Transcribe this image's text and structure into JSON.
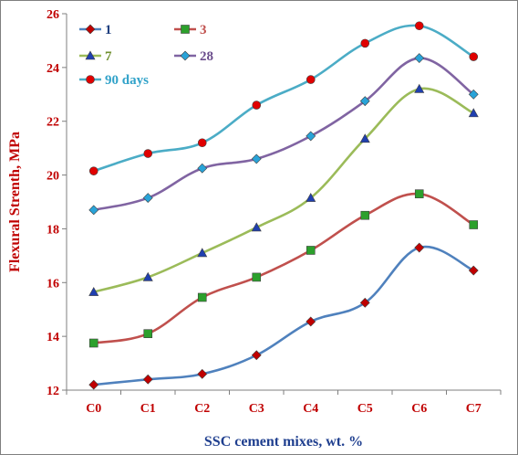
{
  "chart_data": {
    "type": "line",
    "title": "",
    "xlabel": "SSC cement mixes, wt. %",
    "ylabel": "Flexural Strenth, MPa",
    "categories": [
      "C0",
      "C1",
      "C2",
      "C3",
      "C4",
      "C5",
      "C6",
      "C7"
    ],
    "ylim": [
      12,
      26
    ],
    "yticks": [
      12,
      14,
      16,
      18,
      20,
      22,
      24,
      26
    ],
    "grid": false,
    "legend_placement": "top-left",
    "series": [
      {
        "name": "1",
        "marker": "diamond",
        "line_color": "#4f81bd",
        "marker_color": "#c00000",
        "text_color": "#1f3f7f",
        "values": [
          12.2,
          12.4,
          12.6,
          13.3,
          14.55,
          15.25,
          17.3,
          16.45
        ]
      },
      {
        "name": "3",
        "marker": "square",
        "line_color": "#c0504d",
        "marker_color": "#2ca02c",
        "text_color": "#c0504d",
        "values": [
          13.75,
          14.1,
          15.45,
          16.2,
          17.2,
          18.5,
          19.3,
          18.15
        ]
      },
      {
        "name": "7",
        "marker": "triangle",
        "line_color": "#9bbb59",
        "marker_color": "#1f3faf",
        "text_color": "#6f8f2f",
        "values": [
          15.65,
          16.2,
          17.1,
          18.05,
          19.15,
          21.35,
          23.2,
          22.3
        ]
      },
      {
        "name": "28",
        "marker": "diamond",
        "line_color": "#8064a2",
        "marker_color": "#29a3d8",
        "text_color": "#6a4c8c",
        "values": [
          18.7,
          19.15,
          20.25,
          20.6,
          21.45,
          22.75,
          24.35,
          23.0
        ]
      },
      {
        "name": "90 days",
        "marker": "circle",
        "line_color": "#4bacc6",
        "marker_color": "#e00000",
        "text_color": "#31a2c9",
        "values": [
          20.15,
          20.8,
          21.2,
          22.6,
          23.55,
          24.9,
          25.55,
          24.4
        ]
      }
    ],
    "colors": {
      "axis_title": "#c00000",
      "x_axis_title": "#1f3f8f",
      "ytick": "#c00000",
      "xtick": "#c00000",
      "axis_line": "#7f7f7f"
    }
  }
}
